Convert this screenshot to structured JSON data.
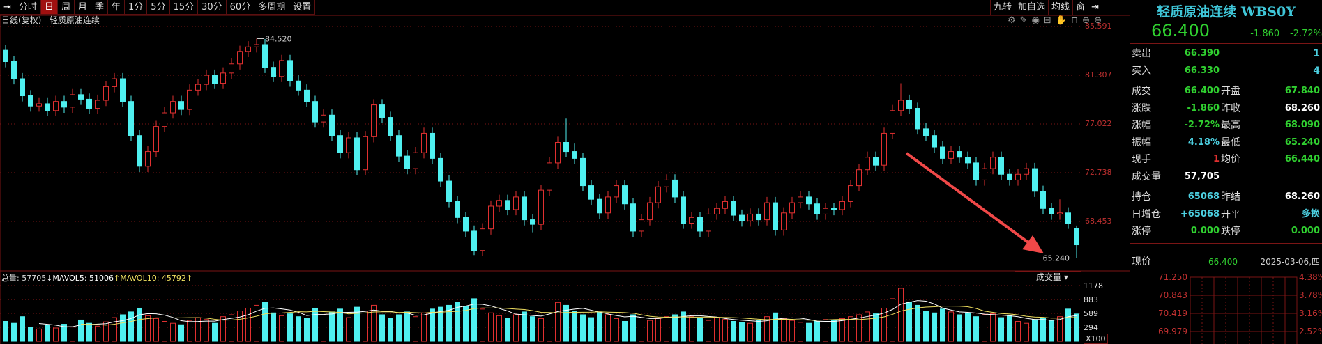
{
  "toolbar": {
    "items": [
      "分时",
      "日",
      "周",
      "月",
      "季",
      "年",
      "1分",
      "5分",
      "15分",
      "30分",
      "60分",
      "多周期",
      "设置"
    ],
    "selected": "日",
    "right": [
      "九转",
      "加自选",
      "均线",
      "窗"
    ]
  },
  "subheader": {
    "period": "日线(复权)",
    "name": "轻质原油连续"
  },
  "icons": [
    "gear-icon",
    "feather-icon",
    "eye-icon",
    "toolbox-icon",
    "hand-icon",
    "lock-icon",
    "zoom-in-icon",
    "zoom-out-icon"
  ],
  "colors": {
    "up": "#e03030",
    "down": "#4ff0f0",
    "grid": "#7a1515",
    "ma5": "#ffffff",
    "ma10": "#f0e060",
    "arrow": "#f04848"
  },
  "quote": {
    "title": "轻质原油连续 WBS0Y",
    "price": "66.400",
    "change": "-1.860",
    "pct": "-2.72%",
    "rows": [
      {
        "l": "卖出",
        "v": "66.390",
        "v2": "1",
        "c": "g",
        "c2": "cy"
      },
      {
        "l": "买入",
        "v": "66.330",
        "v2": "4",
        "c": "g",
        "c2": "cy"
      }
    ],
    "rows2": [
      {
        "l": "成交",
        "v": "66.400",
        "l2": "开盘",
        "v2": "67.840",
        "c": "g",
        "c2": "g"
      },
      {
        "l": "涨跌",
        "v": "-1.860",
        "l2": "昨收",
        "v2": "68.260",
        "c": "g",
        "c2": "w"
      },
      {
        "l": "涨幅",
        "v": "-2.72%",
        "l2": "最高",
        "v2": "68.090",
        "c": "g",
        "c2": "g"
      },
      {
        "l": "振幅",
        "v": "4.18%",
        "l2": "最低",
        "v2": "65.240",
        "c": "cy",
        "c2": "g"
      },
      {
        "l": "现手",
        "v": "1",
        "l2": "均价",
        "v2": "66.440",
        "c": "r",
        "c2": "g"
      },
      {
        "l": "成交量",
        "v": "57,705",
        "l2": "",
        "v2": "",
        "c": "w",
        "c2": "w"
      }
    ],
    "rows3": [
      {
        "l": "持仓",
        "v": "65068",
        "l2": "昨结",
        "v2": "68.260",
        "c": "cy",
        "c2": "w"
      },
      {
        "l": "日增仓",
        "v": "+65068",
        "l2": "开平",
        "v2": "多换",
        "c": "cy",
        "c2": "cy"
      },
      {
        "l": "涨停",
        "v": "0.000",
        "l2": "跌停",
        "v2": "0.000",
        "c": "g",
        "c2": "g"
      }
    ],
    "now_label": "现价",
    "now_price": "66.400",
    "date": "2025-03-06,四",
    "mini_left": [
      "71.250",
      "70.843",
      "70.419",
      "69.979"
    ],
    "mini_right": [
      "4.38%",
      "3.78%",
      "3.16%",
      "2.52%"
    ]
  },
  "volume": {
    "legend_total": "总量: 57705",
    "legend_ma5": "↓MAVOL5: 51006",
    "legend_ma10": "↑MAVOL10: 45792↑",
    "selector": "成交量 ▾",
    "axis": [
      "1178",
      "883",
      "589",
      "294"
    ],
    "unit": "X100"
  },
  "chart_data": {
    "type": "candlestick",
    "title": "轻质原油连续",
    "price_axis": [
      "85.591",
      "81.307",
      "77.022",
      "72.738",
      "68.453"
    ],
    "ylim": [
      65.24,
      85.591
    ],
    "annotations": {
      "max": "84.520",
      "min": "65.240"
    },
    "ohlc": [
      [
        83.5,
        84.0,
        82.0,
        82.5
      ],
      [
        82.5,
        83.0,
        80.5,
        81.0
      ],
      [
        81.0,
        81.5,
        79.0,
        79.5
      ],
      [
        79.5,
        80.0,
        78.1,
        78.6
      ],
      [
        78.6,
        79.3,
        78.1,
        78.8
      ],
      [
        78.8,
        79.3,
        77.7,
        78.2
      ],
      [
        78.2,
        79.5,
        77.7,
        79.0
      ],
      [
        79.0,
        79.5,
        78.0,
        78.5
      ],
      [
        78.5,
        80.1,
        78.0,
        79.6
      ],
      [
        79.6,
        80.1,
        78.7,
        79.2
      ],
      [
        79.2,
        79.7,
        77.9,
        78.4
      ],
      [
        78.4,
        79.6,
        77.9,
        79.1
      ],
      [
        79.1,
        80.8,
        78.6,
        80.3
      ],
      [
        80.3,
        81.5,
        79.8,
        81.0
      ],
      [
        81.0,
        81.5,
        78.5,
        79.0
      ],
      [
        79.0,
        79.5,
        75.5,
        76.0
      ],
      [
        76.0,
        76.5,
        72.8,
        73.3
      ],
      [
        73.3,
        75.1,
        72.8,
        74.6
      ],
      [
        74.6,
        77.3,
        74.1,
        76.8
      ],
      [
        76.8,
        78.5,
        76.3,
        78.0
      ],
      [
        78.0,
        79.5,
        77.5,
        79.0
      ],
      [
        79.0,
        79.5,
        77.8,
        78.3
      ],
      [
        78.3,
        80.5,
        77.8,
        80.0
      ],
      [
        80.0,
        81.0,
        79.5,
        80.5
      ],
      [
        80.5,
        81.8,
        80.0,
        81.3
      ],
      [
        81.3,
        81.8,
        80.1,
        80.6
      ],
      [
        80.6,
        82.0,
        80.1,
        81.5
      ],
      [
        81.5,
        82.8,
        81.0,
        82.3
      ],
      [
        82.3,
        83.9,
        81.8,
        83.4
      ],
      [
        83.4,
        84.3,
        82.9,
        83.8
      ],
      [
        83.8,
        84.52,
        83.3,
        84.0
      ],
      [
        84.0,
        84.5,
        81.5,
        82.0
      ],
      [
        82.0,
        82.5,
        80.7,
        81.2
      ],
      [
        81.2,
        83.1,
        80.7,
        82.6
      ],
      [
        82.6,
        83.1,
        80.3,
        80.8
      ],
      [
        80.8,
        81.3,
        79.5,
        80.0
      ],
      [
        80.0,
        80.5,
        78.5,
        79.0
      ],
      [
        79.0,
        79.5,
        76.7,
        77.2
      ],
      [
        77.2,
        78.3,
        76.7,
        77.8
      ],
      [
        77.8,
        78.3,
        75.5,
        76.0
      ],
      [
        76.0,
        76.5,
        74.0,
        74.5
      ],
      [
        74.5,
        76.3,
        74.0,
        75.8
      ],
      [
        75.8,
        76.3,
        72.5,
        73.0
      ],
      [
        73.0,
        76.4,
        72.5,
        75.9
      ],
      [
        75.9,
        79.2,
        75.4,
        78.7
      ],
      [
        78.7,
        79.2,
        77.1,
        77.6
      ],
      [
        77.6,
        78.1,
        75.5,
        76.0
      ],
      [
        76.0,
        76.5,
        73.7,
        74.2
      ],
      [
        74.2,
        74.7,
        72.6,
        73.1
      ],
      [
        73.1,
        75.0,
        72.6,
        74.5
      ],
      [
        74.5,
        76.7,
        74.0,
        76.2
      ],
      [
        76.2,
        76.7,
        73.5,
        74.0
      ],
      [
        74.0,
        74.5,
        71.5,
        72.0
      ],
      [
        72.0,
        72.5,
        69.7,
        70.2
      ],
      [
        70.2,
        70.7,
        68.3,
        68.8
      ],
      [
        68.8,
        69.3,
        67.1,
        67.6
      ],
      [
        67.6,
        68.1,
        65.5,
        65.9
      ],
      [
        65.9,
        68.3,
        65.4,
        67.8
      ],
      [
        67.8,
        70.3,
        67.3,
        69.8
      ],
      [
        69.8,
        70.8,
        69.3,
        70.3
      ],
      [
        70.3,
        70.8,
        69.0,
        69.5
      ],
      [
        69.5,
        71.1,
        69.0,
        70.6
      ],
      [
        70.6,
        71.1,
        68.1,
        68.6
      ],
      [
        68.6,
        69.1,
        67.5,
        68.2
      ],
      [
        68.2,
        71.7,
        67.7,
        71.2
      ],
      [
        71.2,
        74.1,
        70.7,
        73.6
      ],
      [
        73.6,
        75.9,
        73.1,
        75.4
      ],
      [
        75.4,
        77.5,
        74.1,
        74.6
      ],
      [
        74.6,
        75.3,
        73.5,
        74.0
      ],
      [
        74.0,
        74.5,
        71.1,
        71.6
      ],
      [
        71.6,
        72.1,
        69.9,
        70.4
      ],
      [
        70.4,
        70.9,
        68.7,
        69.2
      ],
      [
        69.2,
        71.1,
        68.7,
        70.6
      ],
      [
        70.6,
        72.1,
        70.1,
        71.6
      ],
      [
        71.6,
        72.1,
        69.5,
        70.0
      ],
      [
        70.0,
        70.5,
        67.1,
        67.6
      ],
      [
        67.6,
        69.1,
        67.1,
        68.6
      ],
      [
        68.6,
        70.6,
        68.1,
        70.1
      ],
      [
        70.1,
        72.0,
        69.6,
        71.5
      ],
      [
        71.5,
        72.6,
        71.0,
        72.1
      ],
      [
        72.1,
        72.6,
        70.1,
        70.6
      ],
      [
        70.6,
        71.1,
        67.8,
        68.3
      ],
      [
        68.3,
        69.3,
        67.8,
        68.8
      ],
      [
        68.8,
        69.3,
        67.1,
        67.6
      ],
      [
        67.6,
        69.6,
        67.1,
        69.1
      ],
      [
        69.1,
        70.1,
        68.6,
        69.6
      ],
      [
        69.6,
        70.7,
        69.1,
        70.2
      ],
      [
        70.2,
        70.7,
        68.5,
        69.0
      ],
      [
        69.0,
        69.5,
        68.0,
        68.5
      ],
      [
        68.5,
        69.6,
        68.0,
        69.1
      ],
      [
        69.1,
        69.6,
        68.1,
        68.6
      ],
      [
        68.6,
        70.6,
        68.1,
        70.1
      ],
      [
        70.1,
        70.6,
        67.2,
        67.7
      ],
      [
        67.7,
        69.7,
        67.2,
        69.2
      ],
      [
        69.2,
        70.6,
        68.7,
        70.1
      ],
      [
        70.1,
        71.1,
        69.6,
        70.6
      ],
      [
        70.6,
        71.1,
        69.5,
        70.0
      ],
      [
        70.0,
        70.5,
        68.6,
        69.1
      ],
      [
        69.1,
        70.1,
        68.6,
        69.6
      ],
      [
        69.6,
        70.1,
        69.0,
        69.5
      ],
      [
        69.5,
        70.7,
        69.0,
        70.2
      ],
      [
        70.2,
        72.1,
        69.7,
        71.6
      ],
      [
        71.6,
        73.5,
        71.1,
        73.0
      ],
      [
        73.0,
        74.6,
        72.5,
        74.1
      ],
      [
        74.1,
        74.6,
        72.9,
        73.4
      ],
      [
        73.4,
        76.7,
        72.9,
        76.2
      ],
      [
        76.2,
        78.7,
        75.7,
        78.2
      ],
      [
        78.2,
        80.6,
        77.7,
        79.1
      ],
      [
        79.1,
        79.6,
        77.9,
        78.4
      ],
      [
        78.4,
        78.9,
        76.1,
        76.6
      ],
      [
        76.6,
        77.1,
        75.5,
        76.0
      ],
      [
        76.0,
        76.5,
        74.5,
        75.0
      ],
      [
        75.0,
        75.5,
        73.5,
        74.0
      ],
      [
        74.0,
        75.1,
        73.5,
        74.6
      ],
      [
        74.6,
        75.1,
        73.6,
        74.1
      ],
      [
        74.1,
        74.6,
        73.1,
        73.6
      ],
      [
        73.6,
        74.1,
        71.6,
        72.1
      ],
      [
        72.1,
        73.6,
        71.6,
        73.1
      ],
      [
        73.1,
        74.6,
        72.6,
        74.1
      ],
      [
        74.1,
        74.6,
        72.1,
        72.6
      ],
      [
        72.6,
        73.1,
        71.6,
        72.1
      ],
      [
        72.1,
        73.1,
        71.6,
        72.6
      ],
      [
        72.6,
        73.6,
        72.1,
        73.1
      ],
      [
        73.1,
        73.6,
        70.6,
        71.1
      ],
      [
        71.1,
        71.6,
        69.1,
        69.6
      ],
      [
        69.6,
        70.1,
        68.6,
        69.1
      ],
      [
        69.1,
        70.4,
        68.6,
        69.2
      ],
      [
        69.2,
        69.7,
        67.8,
        68.26
      ],
      [
        67.84,
        68.09,
        65.24,
        66.4
      ]
    ],
    "volume": [
      420,
      380,
      520,
      300,
      260,
      340,
      280,
      360,
      300,
      450,
      380,
      320,
      410,
      500,
      560,
      620,
      700,
      540,
      480,
      420,
      380,
      350,
      440,
      500,
      460,
      380,
      520,
      560,
      640,
      700,
      760,
      820,
      600,
      540,
      580,
      520,
      480,
      700,
      560,
      620,
      680,
      500,
      720,
      640,
      760,
      560,
      480,
      560,
      620,
      520,
      600,
      680,
      720,
      760,
      820,
      740,
      900,
      680,
      600,
      540,
      480,
      560,
      620,
      520,
      480,
      700,
      820,
      760,
      640,
      560,
      500,
      620,
      560,
      480,
      420,
      560,
      500,
      440,
      480,
      520,
      560,
      620,
      520,
      480,
      440,
      500,
      460,
      420,
      400,
      380,
      440,
      520,
      600,
      480,
      440,
      400,
      380,
      420,
      460,
      440,
      480,
      520,
      560,
      620,
      580,
      700,
      900,
      1120,
      820,
      760,
      640,
      600,
      680,
      620,
      560,
      600,
      520,
      560,
      580,
      500,
      540,
      420,
      380,
      460,
      500,
      440,
      520,
      680,
      577
    ]
  }
}
